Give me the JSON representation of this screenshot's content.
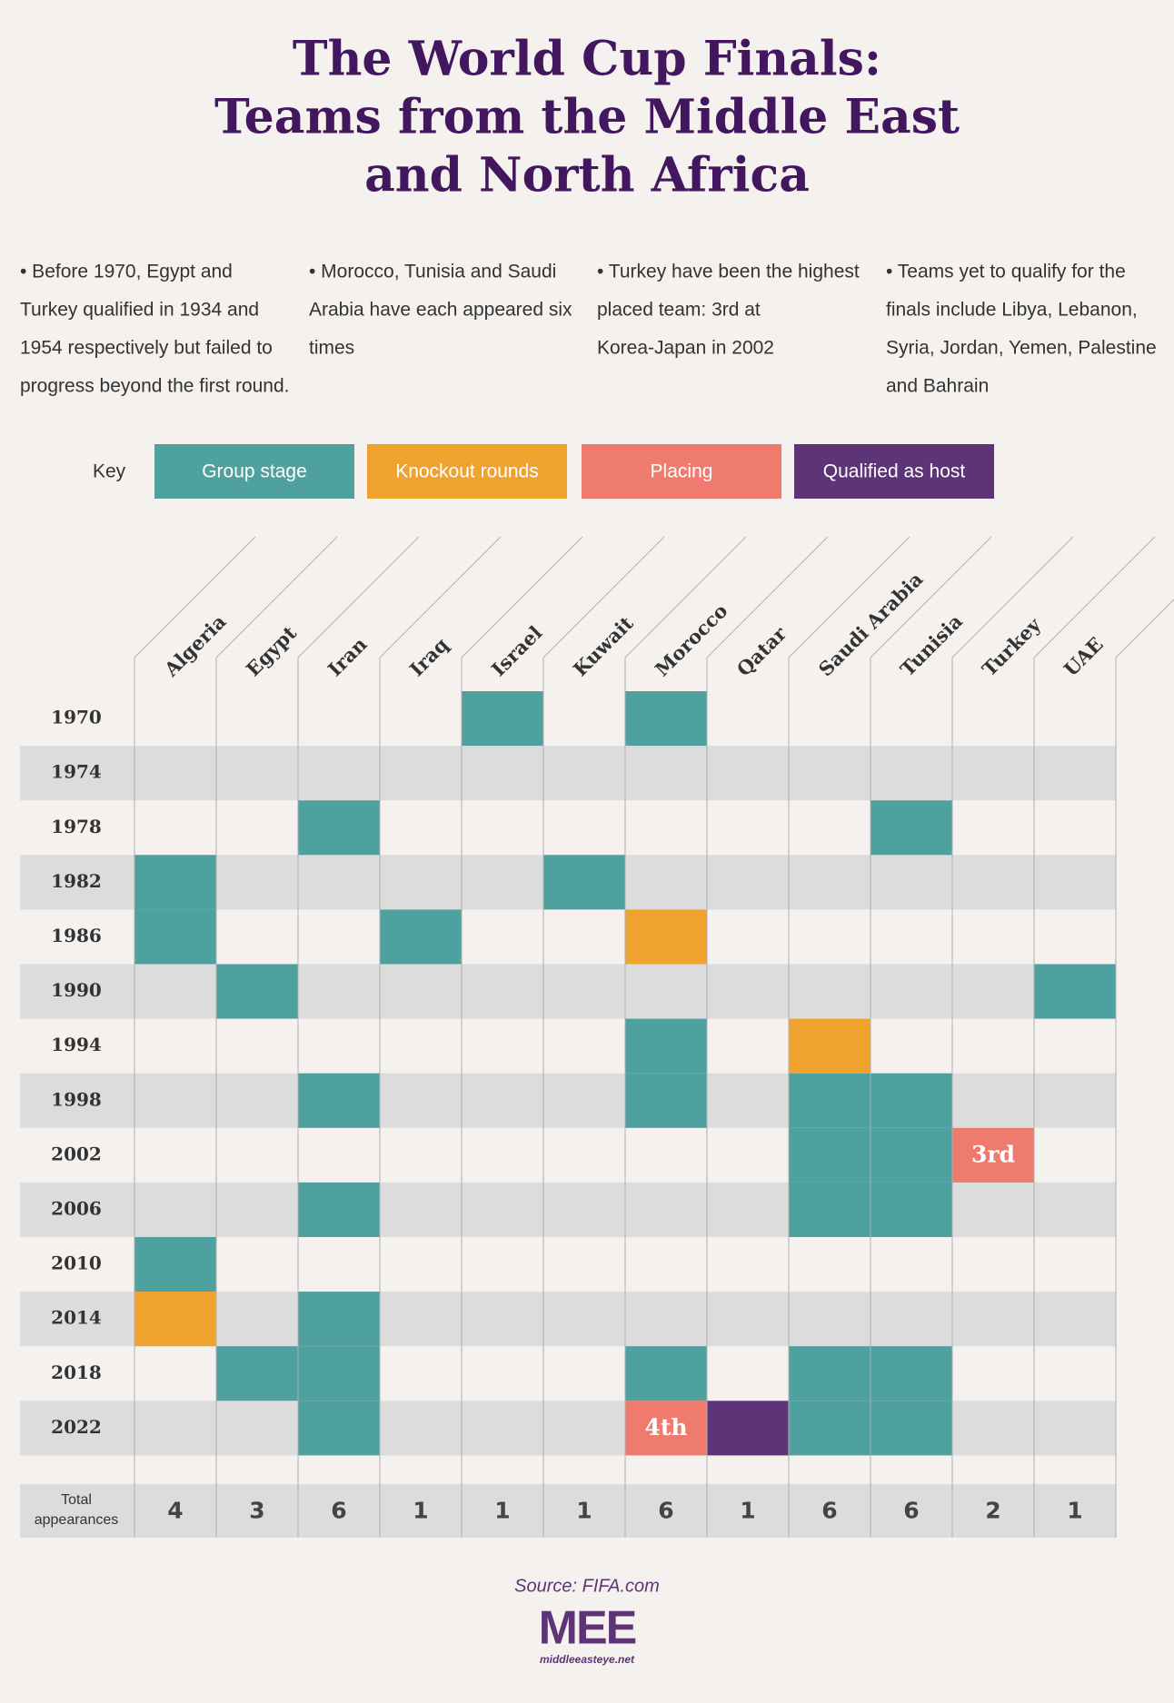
{
  "title": [
    "The World Cup Finals:",
    "Teams from the Middle East",
    "and North Africa"
  ],
  "notes": [
    [
      "• Before 1970, Egypt and",
      "Turkey qualified in 1934 and",
      "1954 respectively but failed to",
      "progress beyond the first round."
    ],
    [
      "• Morocco, Tunisia and Saudi",
      "Arabia have each appeared six",
      "times"
    ],
    [
      "• Turkey have been the highest",
      "placed team: 3rd at",
      "Korea-Japan in 2002"
    ],
    [
      "• Teams yet to qualify for the",
      "finals include Libya, Lebanon,",
      "Syria, Jordan, Yemen, Palestine",
      "and Bahrain"
    ]
  ],
  "key": {
    "label": "Key",
    "items": [
      {
        "label": "Group stage",
        "color": "#4fa19f"
      },
      {
        "label": "Knockout rounds",
        "color": "#f0a22e"
      },
      {
        "label": "Placing",
        "color": "#ef7b6e"
      },
      {
        "label": "Qualified as host",
        "color": "#5e3479"
      }
    ]
  },
  "teams": [
    "Algeria",
    "Egypt",
    "Iran",
    "Iraq",
    "Israel",
    "Kuwait",
    "Morocco",
    "Qatar",
    "Saudi Arabia",
    "Tunisia",
    "Turkey",
    "UAE"
  ],
  "rows": [
    {
      "year": "1970",
      "cells": [
        null,
        null,
        null,
        null,
        "Group stage",
        null,
        "Group stage",
        null,
        null,
        null,
        null,
        null
      ]
    },
    {
      "year": "1974",
      "cells": [
        null,
        null,
        null,
        null,
        null,
        null,
        null,
        null,
        null,
        null,
        null,
        null
      ]
    },
    {
      "year": "1978",
      "cells": [
        null,
        null,
        "Group stage",
        null,
        null,
        null,
        null,
        null,
        null,
        "Group stage",
        null,
        null
      ]
    },
    {
      "year": "1982",
      "cells": [
        "Group stage",
        null,
        null,
        null,
        null,
        "Group stage",
        null,
        null,
        null,
        null,
        null,
        null
      ]
    },
    {
      "year": "1986",
      "cells": [
        "Group stage",
        null,
        null,
        "Group stage",
        null,
        null,
        "Knockout rounds",
        null,
        null,
        null,
        null,
        null
      ]
    },
    {
      "year": "1990",
      "cells": [
        null,
        "Group stage",
        null,
        null,
        null,
        null,
        null,
        null,
        null,
        null,
        null,
        "Group stage"
      ]
    },
    {
      "year": "1994",
      "cells": [
        null,
        null,
        null,
        null,
        null,
        null,
        "Group stage",
        null,
        "Knockout rounds",
        null,
        null,
        null
      ]
    },
    {
      "year": "1998",
      "cells": [
        null,
        null,
        "Group stage",
        null,
        null,
        null,
        "Group stage",
        null,
        "Group stage",
        "Group stage",
        null,
        null
      ]
    },
    {
      "year": "2002",
      "cells": [
        null,
        null,
        null,
        null,
        null,
        null,
        null,
        null,
        "Group stage",
        "Group stage",
        {
          "key": "Placing",
          "label": "3rd"
        },
        null
      ]
    },
    {
      "year": "2006",
      "cells": [
        null,
        null,
        "Group stage",
        null,
        null,
        null,
        null,
        null,
        "Group stage",
        "Group stage",
        null,
        null
      ]
    },
    {
      "year": "2010",
      "cells": [
        "Group stage",
        null,
        null,
        null,
        null,
        null,
        null,
        null,
        null,
        null,
        null,
        null
      ]
    },
    {
      "year": "2014",
      "cells": [
        "Knockout rounds",
        null,
        "Group stage",
        null,
        null,
        null,
        null,
        null,
        null,
        null,
        null,
        null
      ]
    },
    {
      "year": "2018",
      "cells": [
        null,
        "Group stage",
        "Group stage",
        null,
        null,
        null,
        "Group stage",
        null,
        "Group stage",
        "Group stage",
        null,
        null
      ]
    },
    {
      "year": "2022",
      "cells": [
        null,
        null,
        "Group stage",
        null,
        null,
        null,
        {
          "key": "Placing",
          "label": "4th"
        },
        "Qualified as host",
        "Group stage",
        "Group stage",
        null,
        null
      ]
    }
  ],
  "totals": {
    "label": [
      "Total",
      "appearances"
    ],
    "values": [
      4,
      3,
      6,
      1,
      1,
      1,
      6,
      1,
      6,
      6,
      2,
      1
    ]
  },
  "source": "Source: FIFA.com",
  "logo": {
    "mark": "MEE",
    "url": "middleeasteye.net"
  }
}
